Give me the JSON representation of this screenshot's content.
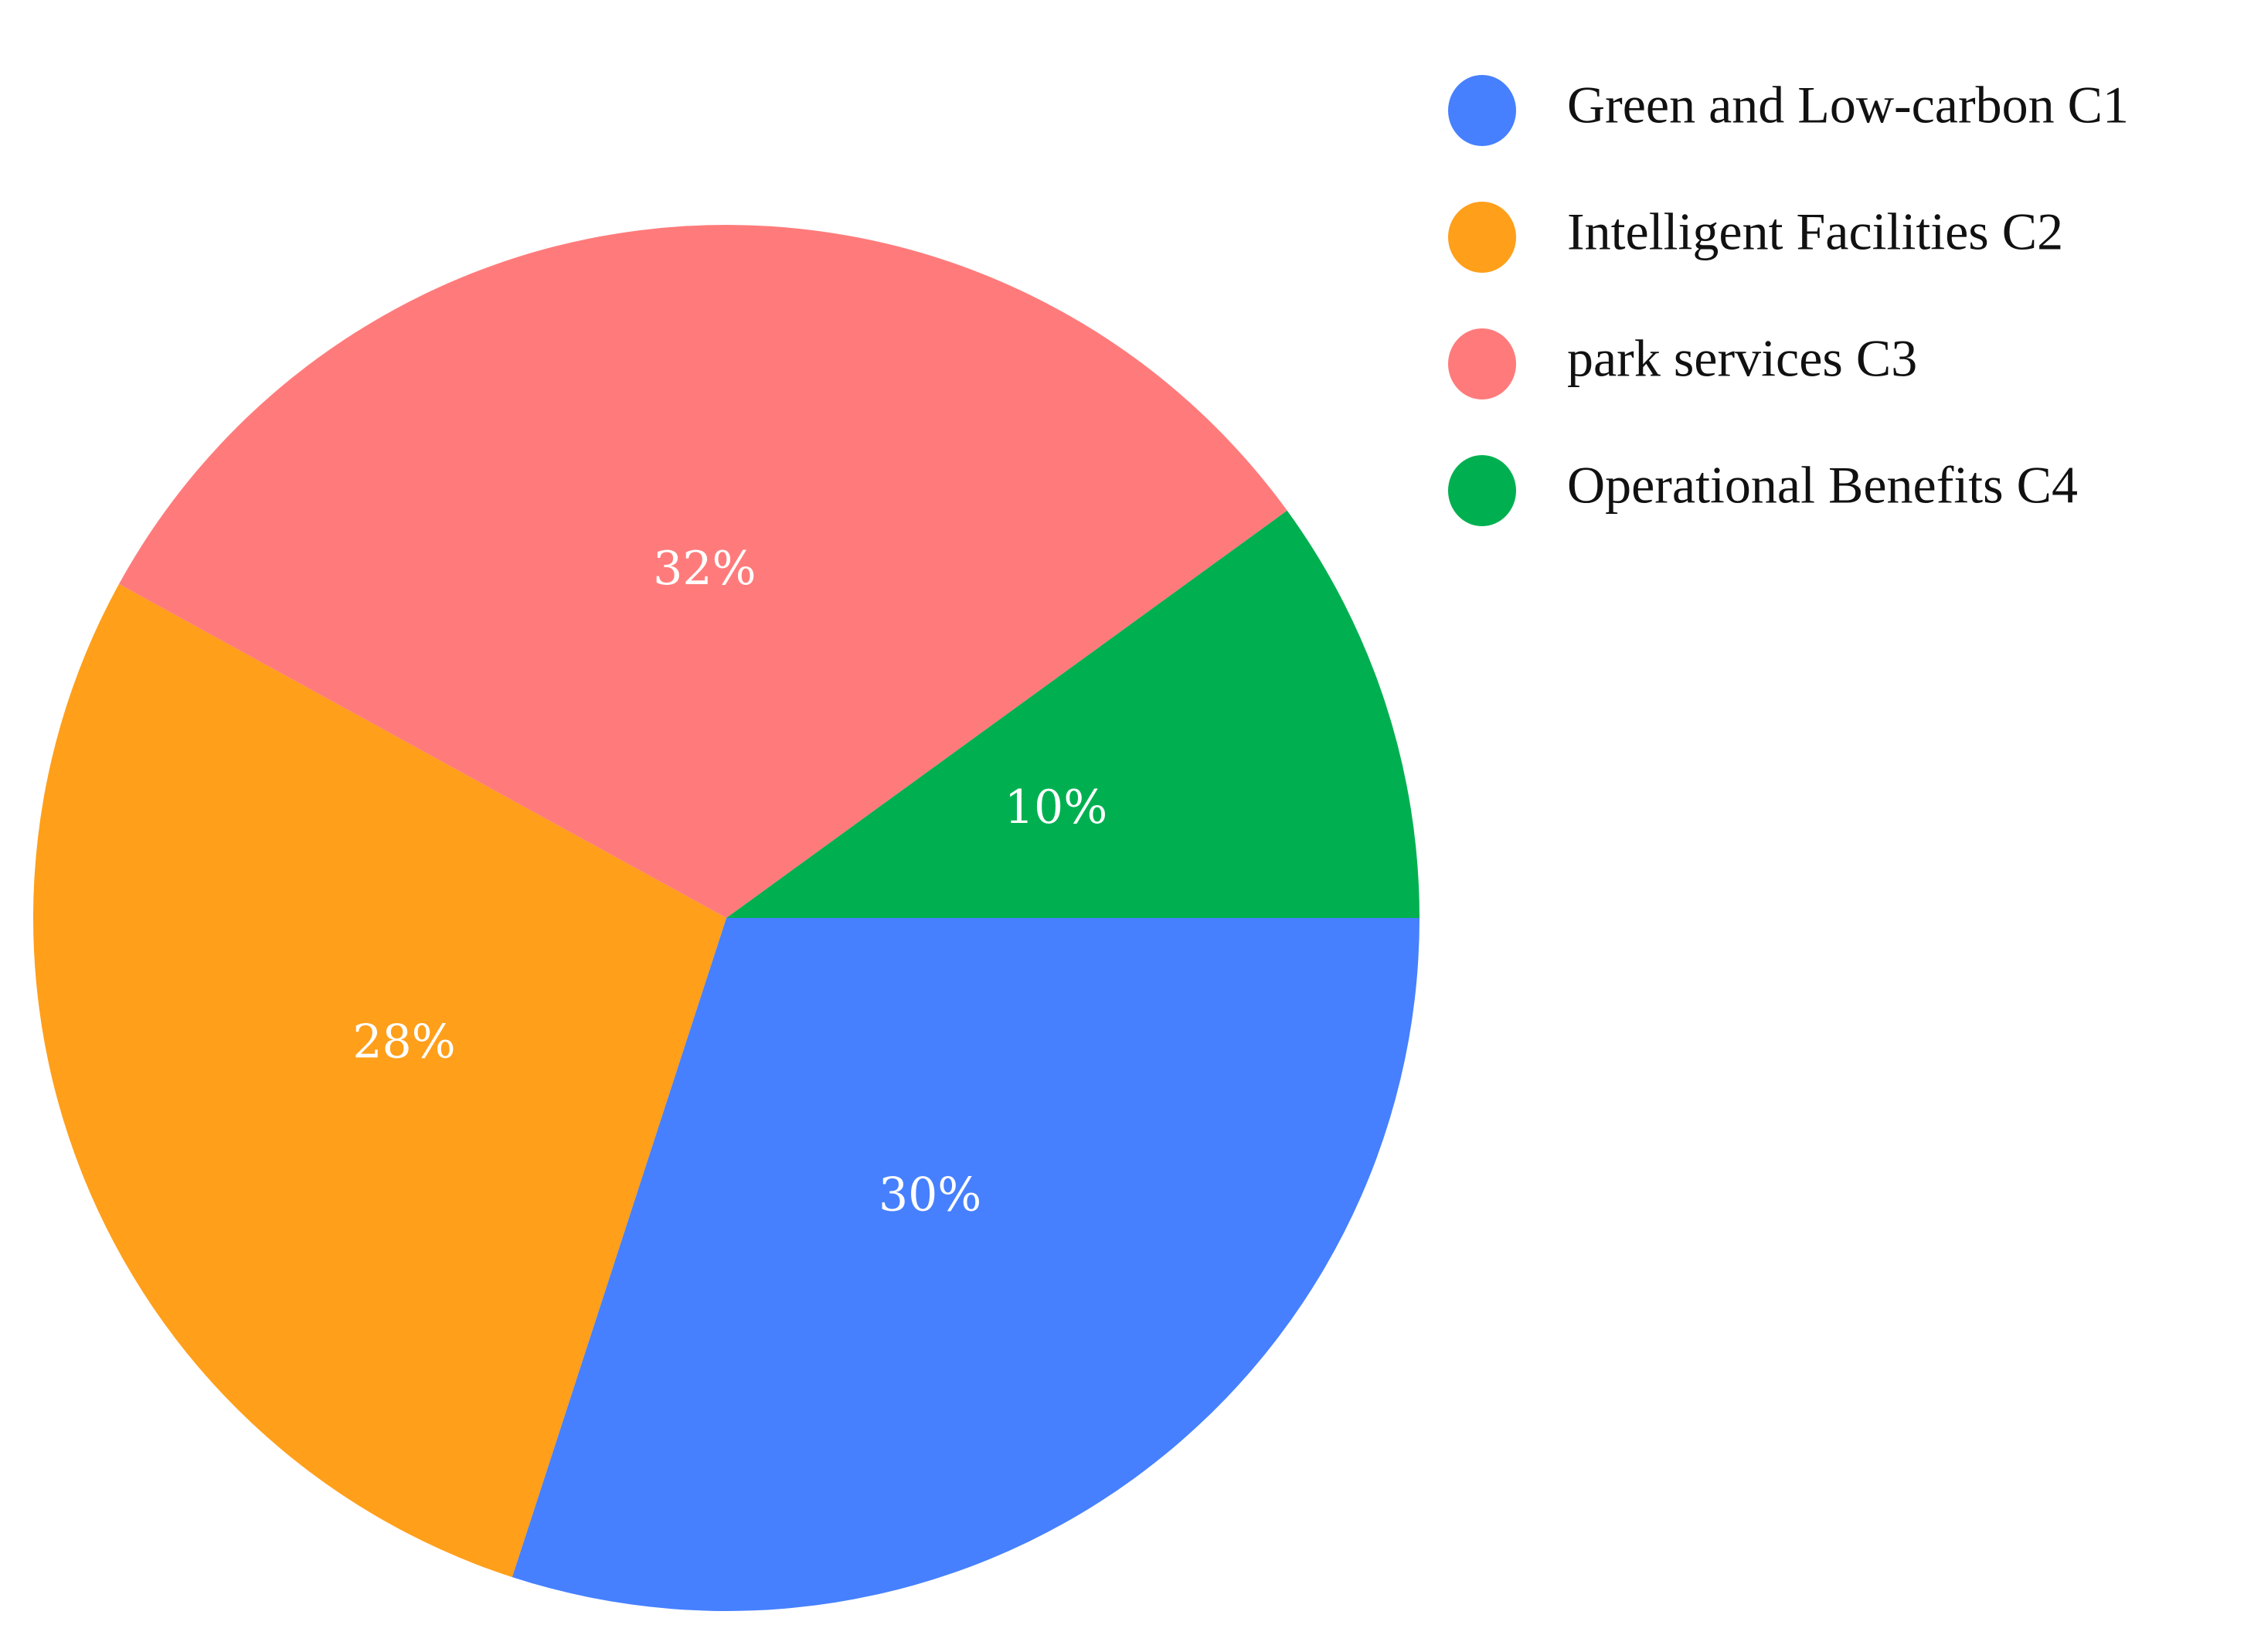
{
  "chart_data": {
    "type": "pie",
    "title": "",
    "start_angle_deg": 0,
    "direction": "clockwise",
    "legend_position": "top-right",
    "slices": [
      {
        "name": "Green and Low-carbon C1",
        "value": 30,
        "label": "30%",
        "color": "#4680FF"
      },
      {
        "name": "Intelligent Facilities C2",
        "value": 28,
        "label": "28%",
        "color": "#FF9F1A"
      },
      {
        "name": "park services C3",
        "value": 32,
        "label": "32%",
        "color": "#FF7B7B"
      },
      {
        "name": "Operational Benefits C4",
        "value": 10,
        "label": "10%",
        "color": "#00B050"
      }
    ]
  }
}
